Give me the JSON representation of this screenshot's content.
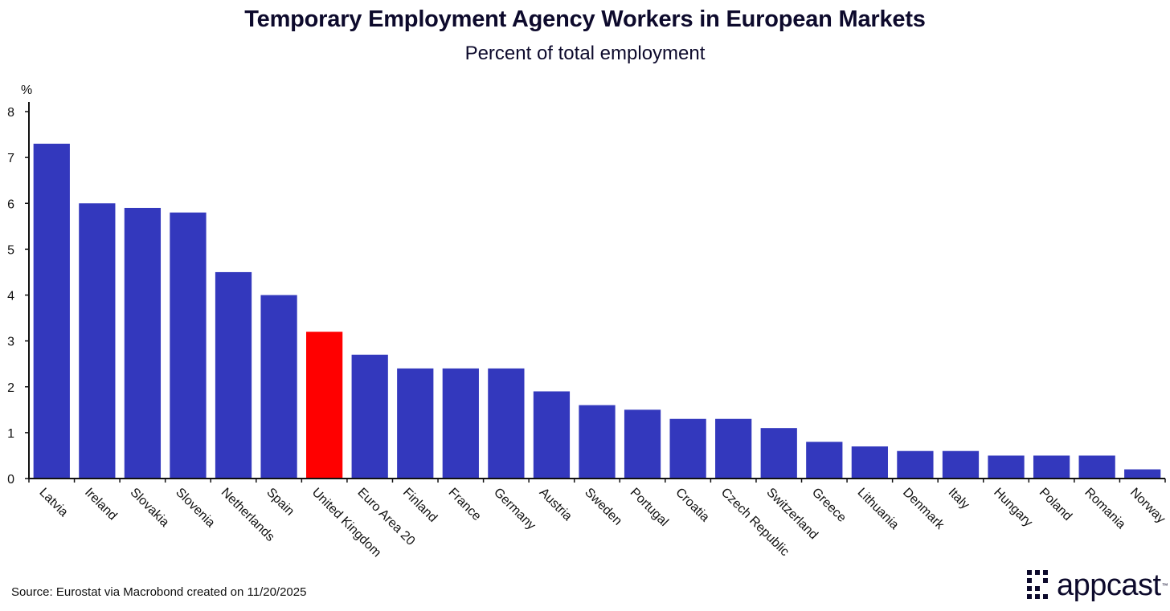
{
  "colors": {
    "bar": "#3338bd",
    "highlight": "#ff0000",
    "axis": "#111111"
  },
  "chart_data": {
    "type": "bar",
    "title": "Temporary Employment Agency Workers in European Markets",
    "subtitle": "Percent of total employment",
    "ylabel": "%",
    "ylim": [
      0,
      8
    ],
    "yticks": [
      "0",
      "1",
      "2",
      "3",
      "4",
      "5",
      "6",
      "7",
      "8"
    ],
    "categories": [
      "Latvia",
      "Ireland",
      "Slovakia",
      "Slovenia",
      "Netherlands",
      "Spain",
      "United Kingdom",
      "Euro Area 20",
      "Finland",
      "France",
      "Germany",
      "Austria",
      "Sweden",
      "Portugal",
      "Croatia",
      "Czech Republic",
      "Switzerland",
      "Greece",
      "Lithuania",
      "Denmark",
      "Italy",
      "Hungary",
      "Poland",
      "Romania",
      "Norway"
    ],
    "values": [
      7.3,
      6.0,
      5.9,
      5.8,
      4.5,
      4.0,
      3.2,
      2.7,
      2.4,
      2.4,
      2.4,
      1.9,
      1.6,
      1.5,
      1.3,
      1.3,
      1.1,
      0.8,
      0.7,
      0.6,
      0.6,
      0.5,
      0.5,
      0.5,
      0.2
    ],
    "highlight": "United Kingdom",
    "grid": false,
    "legend": "none"
  },
  "footer": {
    "source": "Source: Eurostat via Macrobond created on 11/20/2025"
  },
  "logo": {
    "text": "appcast",
    "tm": "™",
    "icon": "dot-grid-icon"
  }
}
